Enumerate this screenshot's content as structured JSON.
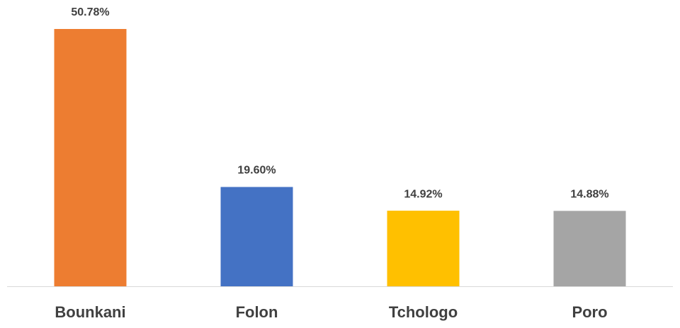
{
  "chart_data": {
    "type": "bar",
    "categories": [
      "Bounkani",
      "Folon",
      "Tchologo",
      "Poro"
    ],
    "values": [
      50.78,
      19.6,
      14.92,
      14.88
    ],
    "value_labels": [
      "50.78%",
      "19.60%",
      "14.92%",
      "14.88%"
    ],
    "colors": [
      "#ed7d31",
      "#4472c4",
      "#ffc000",
      "#a5a5a5"
    ],
    "grid": false
  }
}
